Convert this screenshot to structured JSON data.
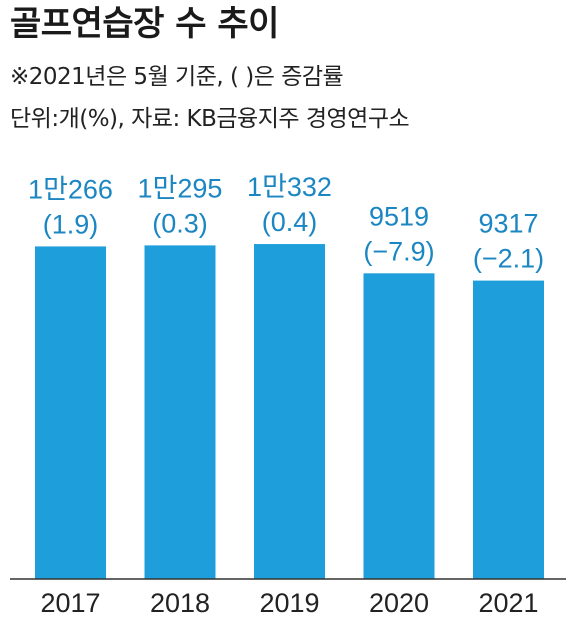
{
  "chart_data": {
    "type": "bar",
    "title": "골프연습장 수 추이",
    "subtitle": "※2021년은 5월 기준, ( )은 증감률",
    "unit_source": "단위:개(%), 자료: KB금융지주 경영연구소",
    "categories": [
      "2017",
      "2018",
      "2019",
      "2020",
      "2021"
    ],
    "values": [
      10266,
      10295,
      10332,
      9519,
      9317
    ],
    "value_labels": [
      "1만266",
      "1만295",
      "1만332",
      "9519",
      "9317"
    ],
    "change_labels": [
      "(1.9)",
      "(0.3)",
      "(0.4)",
      "(−7.9)",
      "(−2.1)"
    ],
    "change_values": [
      1.9,
      0.3,
      0.4,
      -7.9,
      -2.1
    ],
    "bar_color": "#1e9fdb",
    "label_color": "#1b86c2",
    "grid": false,
    "legend": "none"
  }
}
